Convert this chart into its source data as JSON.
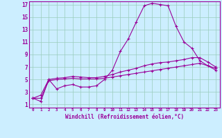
{
  "xlabel": "Windchill (Refroidissement éolien,°C)",
  "background_color": "#cceeff",
  "grid_color": "#aaddcc",
  "line_color": "#990099",
  "xlim": [
    -0.5,
    23.5
  ],
  "ylim": [
    0.5,
    17.5
  ],
  "xticks": [
    0,
    1,
    2,
    3,
    4,
    5,
    6,
    7,
    8,
    9,
    10,
    11,
    12,
    13,
    14,
    15,
    16,
    17,
    18,
    19,
    20,
    21,
    22,
    23
  ],
  "yticks": [
    1,
    3,
    5,
    7,
    9,
    11,
    13,
    15,
    17
  ],
  "series": [
    [
      2.0,
      1.5,
      5.0,
      3.5,
      4.0,
      4.2,
      3.8,
      3.8,
      4.0,
      5.0,
      6.5,
      9.5,
      11.5,
      14.2,
      16.8,
      17.2,
      17.0,
      16.8,
      13.5,
      11.0,
      10.0,
      8.0,
      7.2,
      6.8
    ],
    [
      2.0,
      2.5,
      5.0,
      5.2,
      5.3,
      5.5,
      5.4,
      5.3,
      5.3,
      5.5,
      5.8,
      6.2,
      6.5,
      6.8,
      7.2,
      7.5,
      7.7,
      7.8,
      8.0,
      8.2,
      8.5,
      8.5,
      7.8,
      7.0
    ],
    [
      2.0,
      2.0,
      4.8,
      5.0,
      5.1,
      5.2,
      5.1,
      5.1,
      5.1,
      5.2,
      5.4,
      5.6,
      5.8,
      6.0,
      6.2,
      6.4,
      6.6,
      6.8,
      7.0,
      7.2,
      7.4,
      7.6,
      7.2,
      6.5
    ]
  ]
}
